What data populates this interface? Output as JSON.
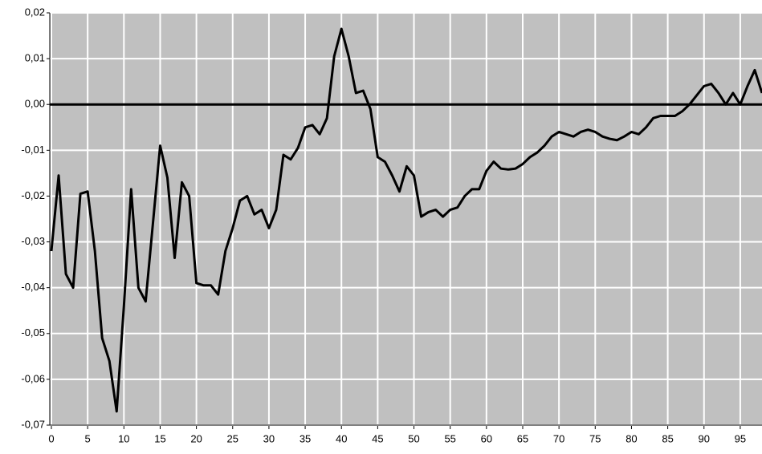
{
  "chart_data": {
    "type": "line",
    "x": [
      0,
      1,
      2,
      3,
      4,
      5,
      6,
      7,
      8,
      9,
      10,
      11,
      12,
      13,
      14,
      15,
      16,
      17,
      18,
      19,
      20,
      21,
      22,
      23,
      24,
      25,
      26,
      27,
      28,
      29,
      30,
      31,
      32,
      33,
      34,
      35,
      36,
      37,
      38,
      39,
      40,
      41,
      42,
      43,
      44,
      45,
      46,
      47,
      48,
      49,
      50,
      51,
      52,
      53,
      54,
      55,
      56,
      57,
      58,
      59,
      60,
      61,
      62,
      63,
      64,
      65,
      66,
      67,
      68,
      69,
      70,
      71,
      72,
      73,
      74,
      75,
      76,
      77,
      78,
      79,
      80,
      81,
      82,
      83,
      84,
      85,
      86,
      87,
      88,
      89,
      90,
      91,
      92,
      93,
      94,
      95,
      96,
      97,
      98
    ],
    "series": [
      {
        "color": "#000000",
        "values": [
          -0.032,
          -0.0155,
          -0.037,
          -0.04,
          -0.0195,
          -0.019,
          -0.032,
          -0.051,
          -0.056,
          -0.067,
          -0.044,
          -0.0185,
          -0.04,
          -0.043,
          -0.026,
          -0.009,
          -0.016,
          -0.0335,
          -0.017,
          -0.02,
          -0.039,
          -0.0395,
          -0.0395,
          -0.0415,
          -0.032,
          -0.027,
          -0.021,
          -0.02,
          -0.024,
          -0.023,
          -0.027,
          -0.023,
          -0.011,
          -0.012,
          -0.0095,
          -0.005,
          -0.0045,
          -0.0065,
          -0.003,
          0.0105,
          0.0165,
          0.0105,
          0.0025,
          0.003,
          -0.001,
          -0.0115,
          -0.0125,
          -0.0155,
          -0.019,
          -0.0135,
          -0.0155,
          -0.0245,
          -0.0235,
          -0.023,
          -0.0245,
          -0.023,
          -0.0225,
          -0.02,
          -0.0185,
          -0.0185,
          -0.0145,
          -0.0125,
          -0.014,
          -0.0142,
          -0.014,
          -0.013,
          -0.0115,
          -0.0105,
          -0.009,
          -0.007,
          -0.006,
          -0.0065,
          -0.007,
          -0.006,
          -0.0055,
          -0.006,
          -0.007,
          -0.0075,
          -0.0078,
          -0.007,
          -0.006,
          -0.0065,
          -0.005,
          -0.003,
          -0.0025,
          -0.0025,
          -0.0025,
          -0.0015,
          0.0,
          0.002,
          0.004,
          0.0045,
          0.0025,
          0.0,
          0.0025,
          0.0,
          0.004,
          0.0075,
          0.0025
        ]
      }
    ],
    "xlim": [
      0,
      98
    ],
    "xticks": [
      0,
      5,
      10,
      15,
      20,
      25,
      30,
      35,
      40,
      45,
      50,
      55,
      60,
      65,
      70,
      75,
      80,
      85,
      90,
      95
    ],
    "ylim": [
      -0.07,
      0.02
    ],
    "yticks": [
      {
        "value": 0.02,
        "label": "0,02"
      },
      {
        "value": 0.01,
        "label": "0,01"
      },
      {
        "value": 0,
        "label": "0,00"
      },
      {
        "value": -0.01,
        "label": "-0,01"
      },
      {
        "value": -0.02,
        "label": "-0,02"
      },
      {
        "value": -0.03,
        "label": "-0,03"
      },
      {
        "value": -0.04,
        "label": "-0,04"
      },
      {
        "value": -0.05,
        "label": "-0,05"
      },
      {
        "value": -0.06,
        "label": "-0,06"
      },
      {
        "value": -0.07,
        "label": "-0,07"
      }
    ],
    "grid": true
  }
}
